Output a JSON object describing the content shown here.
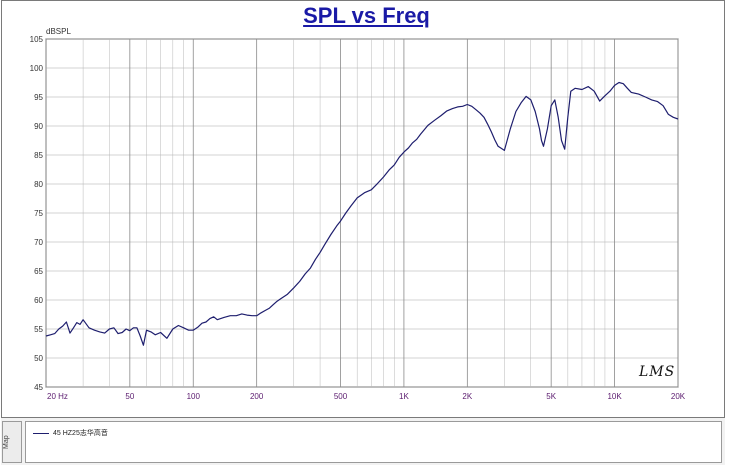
{
  "chart_data": {
    "type": "line",
    "title": "SPL vs Freq",
    "ylabel": "dBSPL",
    "xlabel": "",
    "x_scale": "log",
    "xlim": [
      20,
      20000
    ],
    "ylim": [
      45,
      105
    ],
    "grid": true,
    "y_ticks": [
      "45",
      "50",
      "55",
      "60",
      "65",
      "70",
      "75",
      "80",
      "85",
      "90",
      "95",
      "100",
      "105"
    ],
    "x_ticks": [
      {
        "value": 20,
        "label": "20  Hz"
      },
      {
        "value": 50,
        "label": "50"
      },
      {
        "value": 100,
        "label": "100"
      },
      {
        "value": 200,
        "label": "200"
      },
      {
        "value": 500,
        "label": "500"
      },
      {
        "value": 1000,
        "label": "1K"
      },
      {
        "value": 2000,
        "label": "2K"
      },
      {
        "value": 5000,
        "label": "5K"
      },
      {
        "value": 10000,
        "label": "10K"
      },
      {
        "value": 20000,
        "label": "20K"
      }
    ],
    "series": [
      {
        "name": "45  HZ25志华高音",
        "color": "#1e1e6e",
        "x": [
          20,
          21,
          22,
          23,
          24,
          25,
          26,
          27,
          28,
          29,
          30,
          32,
          34,
          36,
          38,
          40,
          42,
          44,
          46,
          48,
          50,
          52,
          54,
          56,
          58,
          60,
          63,
          66,
          70,
          75,
          80,
          85,
          90,
          95,
          100,
          105,
          110,
          115,
          120,
          125,
          130,
          140,
          150,
          160,
          170,
          180,
          190,
          200,
          210,
          220,
          230,
          240,
          250,
          260,
          280,
          300,
          320,
          340,
          360,
          380,
          400,
          420,
          450,
          480,
          500,
          530,
          560,
          600,
          650,
          700,
          750,
          800,
          850,
          900,
          950,
          1000,
          1050,
          1100,
          1150,
          1200,
          1300,
          1400,
          1500,
          1600,
          1700,
          1800,
          1900,
          2000,
          2100,
          2200,
          2300,
          2400,
          2500,
          2600,
          2700,
          2800,
          3000,
          3200,
          3400,
          3600,
          3800,
          4000,
          4200,
          4400,
          4500,
          4600,
          4800,
          5000,
          5200,
          5400,
          5600,
          5800,
          6000,
          6200,
          6500,
          7000,
          7500,
          8000,
          8500,
          9000,
          9500,
          10000,
          10500,
          11000,
          11500,
          12000,
          13000,
          14000,
          15000,
          16000,
          17000,
          18000,
          19000,
          20000
        ],
        "values": [
          53.8,
          54.0,
          54.2,
          55.0,
          55.5,
          56.2,
          54.3,
          55.2,
          56.1,
          55.8,
          56.6,
          55.2,
          54.8,
          54.5,
          54.3,
          55.0,
          55.2,
          54.2,
          54.4,
          55.0,
          54.7,
          55.2,
          55.2,
          53.8,
          52.2,
          54.8,
          54.5,
          54.0,
          54.4,
          53.4,
          55.0,
          55.6,
          55.2,
          54.8,
          54.8,
          55.3,
          56.0,
          56.2,
          56.8,
          57.1,
          56.6,
          57.0,
          57.3,
          57.3,
          57.6,
          57.4,
          57.3,
          57.3,
          57.8,
          58.2,
          58.6,
          59.2,
          59.8,
          60.2,
          61.0,
          62.1,
          63.2,
          64.5,
          65.5,
          67.0,
          68.2,
          69.5,
          71.3,
          72.8,
          73.6,
          75.0,
          76.2,
          77.6,
          78.5,
          79.0,
          80.1,
          81.2,
          82.4,
          83.3,
          84.6,
          85.5,
          86.2,
          87.1,
          87.7,
          88.6,
          90.1,
          91.0,
          91.8,
          92.6,
          93.0,
          93.3,
          93.4,
          93.7,
          93.4,
          92.8,
          92.2,
          91.5,
          90.3,
          89.0,
          87.6,
          86.5,
          85.8,
          89.5,
          92.5,
          94.0,
          95.1,
          94.5,
          92.5,
          89.5,
          87.5,
          86.5,
          89.5,
          93.5,
          94.5,
          91.5,
          87.5,
          86.0,
          91.5,
          96.0,
          96.5,
          96.3,
          96.8,
          96.0,
          94.3,
          95.2,
          96.0,
          97.0,
          97.5,
          97.3,
          96.5,
          95.8,
          95.5,
          95.0,
          94.5,
          94.2,
          93.5,
          92.0,
          91.5,
          91.2
        ]
      }
    ]
  },
  "legend": {
    "tab_label": "Map",
    "entry_label": "45  HZ25志华高音"
  },
  "signature": "LMS"
}
